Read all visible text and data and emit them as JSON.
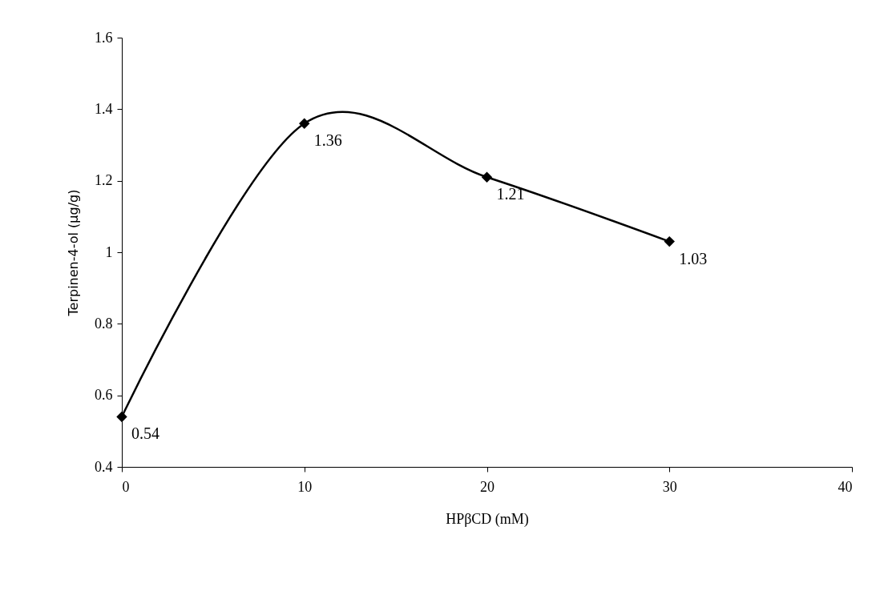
{
  "chart_data": {
    "type": "line",
    "xlabel": "HPβCD (mM)",
    "ylabel": "Terpinen-4-ol (μg/g)",
    "x": [
      0,
      10,
      20,
      30
    ],
    "series": [
      {
        "color": "#000000",
        "values": [
          0.54,
          1.36,
          1.21,
          1.03
        ]
      }
    ],
    "xlim": [
      0,
      40
    ],
    "xticks": [
      0,
      10,
      20,
      30,
      40
    ],
    "ylim": [
      0.4,
      1.6
    ],
    "yticks": [
      0.4,
      0.6,
      0.8,
      1,
      1.2,
      1.4,
      1.6
    ],
    "data_labels": true,
    "marker": "diamond"
  }
}
